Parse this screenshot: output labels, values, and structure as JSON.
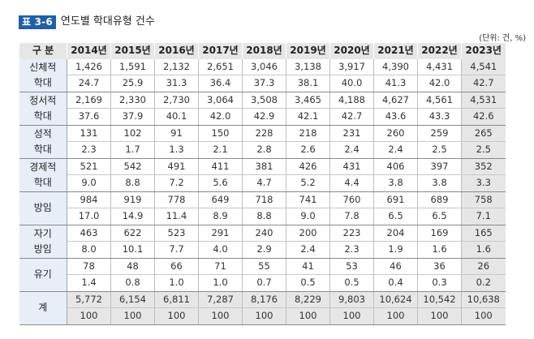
{
  "title": {
    "tag": "표 3-6",
    "text": "연도별 학대유형 건수"
  },
  "unit": "(단위: 건, %)",
  "table": {
    "header_category": "구 분",
    "years": [
      "2014년",
      "2015년",
      "2016년",
      "2017년",
      "2018년",
      "2019년",
      "2020년",
      "2021년",
      "2022년",
      "2023년"
    ],
    "rows": [
      {
        "category": "신체적\n학대",
        "label_line1": "신체적",
        "label_line2": "학대",
        "counts": [
          "1,426",
          "1,591",
          "2,132",
          "2,651",
          "3,046",
          "3,138",
          "3,917",
          "4,390",
          "4,431",
          "4,541"
        ],
        "percents": [
          "24.7",
          "25.9",
          "31.3",
          "36.4",
          "37.3",
          "38.1",
          "40.0",
          "41.3",
          "42.0",
          "42.7"
        ]
      },
      {
        "category": "정서적\n학대",
        "label_line1": "정서적",
        "label_line2": "학대",
        "counts": [
          "2,169",
          "2,330",
          "2,730",
          "3,064",
          "3,508",
          "3,465",
          "4,188",
          "4,627",
          "4,561",
          "4,531"
        ],
        "percents": [
          "37.6",
          "37.9",
          "40.1",
          "42.0",
          "42.9",
          "42.1",
          "42.7",
          "43.6",
          "43.3",
          "42.6"
        ]
      },
      {
        "category": "성적\n학대",
        "label_line1": "성적",
        "label_line2": "학대",
        "counts": [
          "131",
          "102",
          "91",
          "150",
          "228",
          "218",
          "231",
          "260",
          "259",
          "265"
        ],
        "percents": [
          "2.3",
          "1.7",
          "1.3",
          "2.1",
          "2.8",
          "2.6",
          "2.4",
          "2.4",
          "2.5",
          "2.5"
        ]
      },
      {
        "category": "경제적\n학대",
        "label_line1": "경제적",
        "label_line2": "학대",
        "counts": [
          "521",
          "542",
          "491",
          "411",
          "381",
          "426",
          "431",
          "406",
          "397",
          "352"
        ],
        "percents": [
          "9.0",
          "8.8",
          "7.2",
          "5.6",
          "4.7",
          "5.2",
          "4.4",
          "3.8",
          "3.8",
          "3.3"
        ]
      },
      {
        "category": "방임",
        "label_line1": "방임",
        "label_line2": "",
        "counts": [
          "984",
          "919",
          "778",
          "649",
          "718",
          "741",
          "760",
          "691",
          "689",
          "758"
        ],
        "percents": [
          "17.0",
          "14.9",
          "11.4",
          "8.9",
          "8.8",
          "9.0",
          "7.8",
          "6.5",
          "6.5",
          "7.1"
        ]
      },
      {
        "category": "자기\n방임",
        "label_line1": "자기",
        "label_line2": "방임",
        "counts": [
          "463",
          "622",
          "523",
          "291",
          "240",
          "200",
          "223",
          "204",
          "169",
          "165"
        ],
        "percents": [
          "8.0",
          "10.1",
          "7.7",
          "4.0",
          "2.9",
          "2.4",
          "2.3",
          "1.9",
          "1.6",
          "1.6"
        ]
      },
      {
        "category": "유기",
        "label_line1": "유기",
        "label_line2": "",
        "counts": [
          "78",
          "48",
          "66",
          "71",
          "55",
          "41",
          "53",
          "46",
          "36",
          "26"
        ],
        "percents": [
          "1.4",
          "0.8",
          "1.0",
          "1.0",
          "0.7",
          "0.5",
          "0.5",
          "0.4",
          "0.3",
          "0.2"
        ]
      },
      {
        "category": "계",
        "label_line1": "계",
        "label_line2": "",
        "is_total": true,
        "counts": [
          "5,772",
          "6,154",
          "6,811",
          "7,287",
          "8,176",
          "8,229",
          "9,803",
          "10,624",
          "10,542",
          "10,638"
        ],
        "percents": [
          "100",
          "100",
          "100",
          "100",
          "100",
          "100",
          "100",
          "100",
          "100",
          "100"
        ]
      }
    ]
  },
  "colors": {
    "tag_bg": "#1f5fa8",
    "header_bg": "#e6e6e6",
    "category_bg": "#e7eef7",
    "highlight_col_bg": "#e6e6e6"
  }
}
